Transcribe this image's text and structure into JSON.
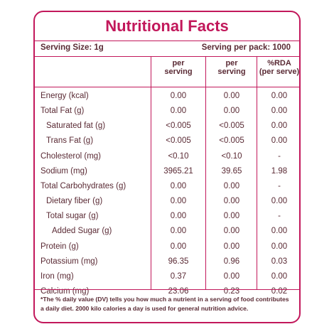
{
  "title": "Nutritional Facts",
  "serving_size": "Serving Size: 1g",
  "serving_per_pack": "Serving per pack: 1000",
  "columns": {
    "col1_line1": "per",
    "col1_line2": "serving",
    "col2_line1": "per",
    "col2_line2": "serving",
    "col3_line1": "%RDA",
    "col3_line2": "(per serve)"
  },
  "rows": [
    {
      "label": "Energy (kcal)",
      "v1": "0.00",
      "v2": "0.00",
      "v3": "0.00"
    },
    {
      "label": "Total Fat (g)",
      "v1": "0.00",
      "v2": "0.00",
      "v3": "0.00"
    },
    {
      "label": "Saturated fat (g)",
      "v1": "<0.005",
      "v2": "<0.005",
      "v3": "0.00"
    },
    {
      "label": "Trans Fat (g)",
      "v1": "<0.005",
      "v2": "<0.005",
      "v3": "0.00"
    },
    {
      "label": "Cholesterol (mg)",
      "v1": "<0.10",
      "v2": "<0.10",
      "v3": "-"
    },
    {
      "label": "Sodium (mg)",
      "v1": "3965.21",
      "v2": "39.65",
      "v3": "1.98"
    },
    {
      "label": "Total Carbohydrates  (g)",
      "v1": "0.00",
      "v2": "0.00",
      "v3": "-"
    },
    {
      "label": "Dietary fiber (g)",
      "v1": "0.00",
      "v2": "0.00",
      "v3": "0.00"
    },
    {
      "label": "Total sugar (g)",
      "v1": "0.00",
      "v2": "0.00",
      "v3": "-"
    },
    {
      "label": "Added Sugar (g)",
      "v1": "0.00",
      "v2": "0.00",
      "v3": "0.00"
    },
    {
      "label": "Protein (g)",
      "v1": "0.00",
      "v2": "0.00",
      "v3": "0.00"
    },
    {
      "label": "Potassium (mg)",
      "v1": "96.35",
      "v2": "0.96",
      "v3": "0.03"
    },
    {
      "label": "Iron (mg)",
      "v1": "0.37",
      "v2": "0.00",
      "v3": "0.00"
    },
    {
      "label": "Calcium (mg)",
      "v1": "23.06",
      "v2": "0.23",
      "v3": "0.02"
    }
  ],
  "footnote": "*The % daily value (DV) tells you how much a nutrient in a serving of food contributes a daily diet. 2000 kilo calories a day is used for general nutrition advice.",
  "colors": {
    "accent": "#c2185b",
    "text": "#5a2a34"
  }
}
